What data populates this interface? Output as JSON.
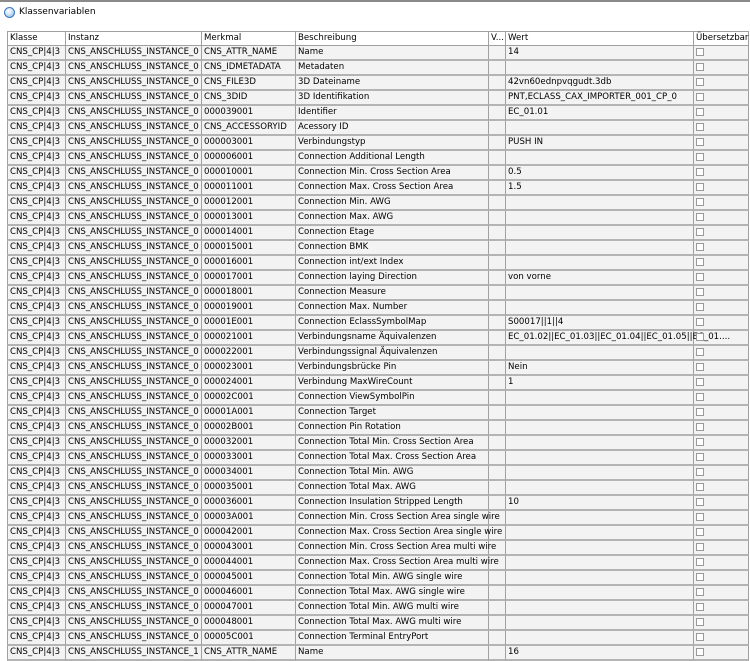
{
  "window": {
    "title": "Klassenvariablen",
    "icon": "app-circle-icon"
  },
  "table": {
    "columns": [
      "Klasse",
      "Instanz",
      "Merkmal",
      "Beschreibung",
      "V...",
      "Wert",
      "Übersetzbar"
    ],
    "rows": [
      [
        "CNS_CP|4|3",
        "CNS_ANSCHLUSS_INSTANCE_0",
        "CNS_ATTR_NAME",
        "Name",
        "",
        "14",
        false
      ],
      [
        "CNS_CP|4|3",
        "CNS_ANSCHLUSS_INSTANCE_0",
        "CNS_IDMETADATA",
        "Metadaten",
        "",
        "",
        false
      ],
      [
        "CNS_CP|4|3",
        "CNS_ANSCHLUSS_INSTANCE_0",
        "CNS_FILE3D",
        "3D Dateiname",
        "",
        "42vn60ednpvqgudt.3db",
        false
      ],
      [
        "CNS_CP|4|3",
        "CNS_ANSCHLUSS_INSTANCE_0",
        "CNS_3DID",
        "3D Identifikation",
        "",
        "PNT,ECLASS_CAX_IMPORTER_001_CP_0",
        false
      ],
      [
        "CNS_CP|4|3",
        "CNS_ANSCHLUSS_INSTANCE_0",
        "000039001",
        "Identifier",
        "",
        "EC_01.01",
        false
      ],
      [
        "CNS_CP|4|3",
        "CNS_ANSCHLUSS_INSTANCE_0",
        "CNS_ACCESSORYID",
        "Acessory ID",
        "",
        "",
        false
      ],
      [
        "CNS_CP|4|3",
        "CNS_ANSCHLUSS_INSTANCE_0",
        "000003001",
        "Verbindungstyp",
        "",
        "PUSH IN",
        false
      ],
      [
        "CNS_CP|4|3",
        "CNS_ANSCHLUSS_INSTANCE_0",
        "000006001",
        "Connection Additional Length",
        "",
        "",
        false
      ],
      [
        "CNS_CP|4|3",
        "CNS_ANSCHLUSS_INSTANCE_0",
        "000010001",
        "Connection Min. Cross Section Area",
        "",
        "0.5",
        false
      ],
      [
        "CNS_CP|4|3",
        "CNS_ANSCHLUSS_INSTANCE_0",
        "000011001",
        "Connection Max. Cross Section Area",
        "",
        "1.5",
        false
      ],
      [
        "CNS_CP|4|3",
        "CNS_ANSCHLUSS_INSTANCE_0",
        "000012001",
        "Connection Min. AWG",
        "",
        "",
        false
      ],
      [
        "CNS_CP|4|3",
        "CNS_ANSCHLUSS_INSTANCE_0",
        "000013001",
        "Connection Max. AWG",
        "",
        "",
        false
      ],
      [
        "CNS_CP|4|3",
        "CNS_ANSCHLUSS_INSTANCE_0",
        "000014001",
        "Connection Etage",
        "",
        "",
        false
      ],
      [
        "CNS_CP|4|3",
        "CNS_ANSCHLUSS_INSTANCE_0",
        "000015001",
        "Connection BMK",
        "",
        "",
        false
      ],
      [
        "CNS_CP|4|3",
        "CNS_ANSCHLUSS_INSTANCE_0",
        "000016001",
        "Connection int/ext Index",
        "",
        "",
        false
      ],
      [
        "CNS_CP|4|3",
        "CNS_ANSCHLUSS_INSTANCE_0",
        "000017001",
        "Connection laying Direction",
        "",
        "von vorne",
        false
      ],
      [
        "CNS_CP|4|3",
        "CNS_ANSCHLUSS_INSTANCE_0",
        "000018001",
        "Connection Measure",
        "",
        "",
        false
      ],
      [
        "CNS_CP|4|3",
        "CNS_ANSCHLUSS_INSTANCE_0",
        "000019001",
        "Connection Max. Number",
        "",
        "",
        false
      ],
      [
        "CNS_CP|4|3",
        "CNS_ANSCHLUSS_INSTANCE_0",
        "00001E001",
        "Connection EclassSymbolMap",
        "",
        "S00017||1||4",
        false
      ],
      [
        "CNS_CP|4|3",
        "CNS_ANSCHLUSS_INSTANCE_0",
        "000021001",
        "Verbindungsname Äquivalenzen",
        "",
        "EC_01.02||EC_01.03||EC_01.04||EC_01.05||EC_01....",
        false
      ],
      [
        "CNS_CP|4|3",
        "CNS_ANSCHLUSS_INSTANCE_0",
        "000022001",
        "Verbindungssignal Äquivalenzen",
        "",
        "",
        false
      ],
      [
        "CNS_CP|4|3",
        "CNS_ANSCHLUSS_INSTANCE_0",
        "000023001",
        "Verbindungsbrücke Pin",
        "",
        "Nein",
        false
      ],
      [
        "CNS_CP|4|3",
        "CNS_ANSCHLUSS_INSTANCE_0",
        "000024001",
        "Verbindung MaxWireCount",
        "",
        "1",
        false
      ],
      [
        "CNS_CP|4|3",
        "CNS_ANSCHLUSS_INSTANCE_0",
        "00002C001",
        "Connection ViewSymbolPin",
        "",
        "",
        false
      ],
      [
        "CNS_CP|4|3",
        "CNS_ANSCHLUSS_INSTANCE_0",
        "00001A001",
        "Connection Target",
        "",
        "",
        false
      ],
      [
        "CNS_CP|4|3",
        "CNS_ANSCHLUSS_INSTANCE_0",
        "00002B001",
        "Connection Pin Rotation",
        "",
        "",
        false
      ],
      [
        "CNS_CP|4|3",
        "CNS_ANSCHLUSS_INSTANCE_0",
        "000032001",
        "Connection Total Min. Cross Section Area",
        "",
        "",
        false
      ],
      [
        "CNS_CP|4|3",
        "CNS_ANSCHLUSS_INSTANCE_0",
        "000033001",
        "Connection Total Max. Cross Section Area",
        "",
        "",
        false
      ],
      [
        "CNS_CP|4|3",
        "CNS_ANSCHLUSS_INSTANCE_0",
        "000034001",
        "Connection Total Min. AWG",
        "",
        "",
        false
      ],
      [
        "CNS_CP|4|3",
        "CNS_ANSCHLUSS_INSTANCE_0",
        "000035001",
        "Connection Total Max. AWG",
        "",
        "",
        false
      ],
      [
        "CNS_CP|4|3",
        "CNS_ANSCHLUSS_INSTANCE_0",
        "000036001",
        "Connection Insulation Stripped Length",
        "",
        "10",
        false
      ],
      [
        "CNS_CP|4|3",
        "CNS_ANSCHLUSS_INSTANCE_0",
        "00003A001",
        "Connection Min. Cross Section Area single wire",
        "",
        "",
        false
      ],
      [
        "CNS_CP|4|3",
        "CNS_ANSCHLUSS_INSTANCE_0",
        "000042001",
        "Connection Max. Cross Section Area single wire",
        "",
        "",
        false
      ],
      [
        "CNS_CP|4|3",
        "CNS_ANSCHLUSS_INSTANCE_0",
        "000043001",
        "Connection Min. Cross Section Area multi wire",
        "",
        "",
        false
      ],
      [
        "CNS_CP|4|3",
        "CNS_ANSCHLUSS_INSTANCE_0",
        "000044001",
        "Connection Max. Cross Section Area multi wire",
        "",
        "",
        false
      ],
      [
        "CNS_CP|4|3",
        "CNS_ANSCHLUSS_INSTANCE_0",
        "000045001",
        "Connection Total Min. AWG single wire",
        "",
        "",
        false
      ],
      [
        "CNS_CP|4|3",
        "CNS_ANSCHLUSS_INSTANCE_0",
        "000046001",
        "Connection Total Max. AWG single wire",
        "",
        "",
        false
      ],
      [
        "CNS_CP|4|3",
        "CNS_ANSCHLUSS_INSTANCE_0",
        "000047001",
        "Connection Total Min. AWG multi wire",
        "",
        "",
        false
      ],
      [
        "CNS_CP|4|3",
        "CNS_ANSCHLUSS_INSTANCE_0",
        "000048001",
        "Connection Total Max. AWG multi wire",
        "",
        "",
        false
      ],
      [
        "CNS_CP|4|3",
        "CNS_ANSCHLUSS_INSTANCE_0",
        "00005C001",
        "Connection Terminal EntryPort",
        "",
        "",
        false
      ],
      [
        "CNS_CP|4|3",
        "CNS_ANSCHLUSS_INSTANCE_1",
        "CNS_ATTR_NAME",
        "Name",
        "",
        "16",
        false
      ]
    ]
  }
}
